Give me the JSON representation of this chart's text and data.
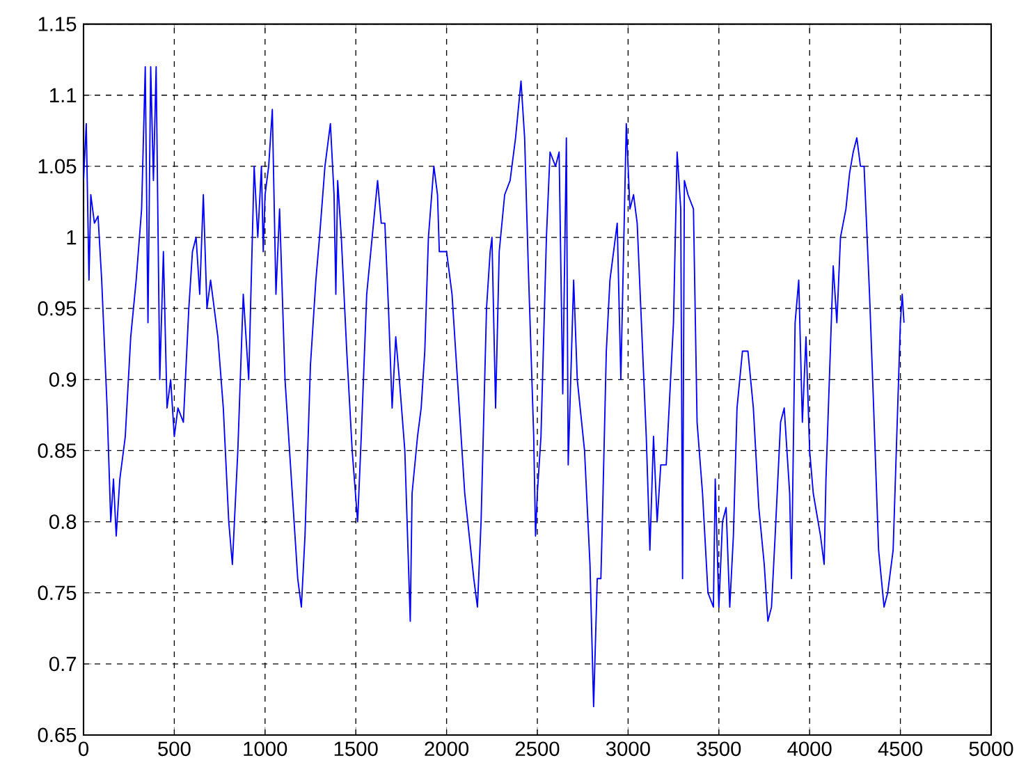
{
  "chart_data": {
    "type": "line",
    "color": "#0000ff",
    "grid": true,
    "line_style": "solid",
    "xlim": [
      0,
      5000
    ],
    "ylim": [
      0.65,
      1.15
    ],
    "xticks": [
      0,
      500,
      1000,
      1500,
      2000,
      2500,
      3000,
      3500,
      4000,
      4500,
      5000
    ],
    "yticks": [
      0.65,
      0.7,
      0.75,
      0.8,
      0.85,
      0.9,
      0.95,
      1,
      1.05,
      1.1,
      1.15
    ],
    "x": [
      0,
      15,
      30,
      40,
      60,
      80,
      100,
      130,
      150,
      165,
      180,
      200,
      230,
      260,
      290,
      320,
      340,
      355,
      370,
      385,
      400,
      420,
      440,
      460,
      480,
      500,
      520,
      550,
      580,
      600,
      620,
      640,
      660,
      680,
      700,
      740,
      770,
      800,
      820,
      850,
      880,
      910,
      940,
      960,
      980,
      990,
      1000,
      1020,
      1040,
      1060,
      1080,
      1110,
      1140,
      1180,
      1200,
      1220,
      1250,
      1280,
      1300,
      1330,
      1350,
      1360,
      1380,
      1390,
      1400,
      1420,
      1450,
      1480,
      1510,
      1530,
      1560,
      1590,
      1620,
      1640,
      1660,
      1680,
      1700,
      1720,
      1740,
      1770,
      1800,
      1810,
      1840,
      1860,
      1880,
      1900,
      1930,
      1950,
      1960,
      2000,
      2030,
      2060,
      2100,
      2150,
      2170,
      2190,
      2220,
      2240,
      2250,
      2270,
      2290,
      2320,
      2350,
      2380,
      2410,
      2430,
      2450,
      2480,
      2490,
      2500,
      2520,
      2550,
      2570,
      2600,
      2620,
      2640,
      2660,
      2670,
      2700,
      2720,
      2760,
      2790,
      2810,
      2830,
      2850,
      2860,
      2880,
      2900,
      2920,
      2940,
      2960,
      2990,
      3010,
      3030,
      3050,
      3070,
      3100,
      3120,
      3140,
      3160,
      3180,
      3210,
      3250,
      3270,
      3290,
      3300,
      3310,
      3330,
      3360,
      3380,
      3410,
      3440,
      3470,
      3480,
      3500,
      3520,
      3540,
      3560,
      3580,
      3600,
      3630,
      3660,
      3690,
      3720,
      3750,
      3770,
      3790,
      3810,
      3840,
      3860,
      3890,
      3900,
      3920,
      3940,
      3960,
      3980,
      4000,
      4020,
      4060,
      4080,
      4090,
      4130,
      4150,
      4170,
      4200,
      4220,
      4240,
      4260,
      4280,
      4300,
      4330,
      4350,
      4380,
      4410,
      4430,
      4460,
      4480,
      4500,
      4510,
      4520
    ],
    "values": [
      1.04,
      1.08,
      0.97,
      1.03,
      1.01,
      1.015,
      0.97,
      0.88,
      0.8,
      0.83,
      0.79,
      0.83,
      0.86,
      0.93,
      0.97,
      1.02,
      1.12,
      0.94,
      1.12,
      1.04,
      1.12,
      0.9,
      0.99,
      0.88,
      0.9,
      0.86,
      0.88,
      0.87,
      0.95,
      0.99,
      1.0,
      0.96,
      1.03,
      0.95,
      0.97,
      0.93,
      0.88,
      0.8,
      0.77,
      0.85,
      0.96,
      0.9,
      1.05,
      1.0,
      1.05,
      0.99,
      1.03,
      1.05,
      1.09,
      0.96,
      1.02,
      0.9,
      0.84,
      0.76,
      0.74,
      0.79,
      0.91,
      0.97,
      1.0,
      1.05,
      1.07,
      1.08,
      1.03,
      0.96,
      1.04,
      1.0,
      0.92,
      0.85,
      0.8,
      0.86,
      0.96,
      1.0,
      1.04,
      1.01,
      1.01,
      0.95,
      0.88,
      0.93,
      0.9,
      0.85,
      0.73,
      0.82,
      0.86,
      0.88,
      0.92,
      1.0,
      1.05,
      1.03,
      0.99,
      0.99,
      0.96,
      0.9,
      0.82,
      0.76,
      0.74,
      0.8,
      0.95,
      0.99,
      1.0,
      0.88,
      0.99,
      1.03,
      1.04,
      1.07,
      1.11,
      1.07,
      0.98,
      0.86,
      0.79,
      0.82,
      0.86,
      1.0,
      1.06,
      1.05,
      1.06,
      0.89,
      1.07,
      0.84,
      0.97,
      0.9,
      0.85,
      0.77,
      0.67,
      0.76,
      0.76,
      0.81,
      0.92,
      0.97,
      0.99,
      1.01,
      0.9,
      1.08,
      1.02,
      1.03,
      1.01,
      0.95,
      0.86,
      0.78,
      0.86,
      0.8,
      0.84,
      0.84,
      0.94,
      1.06,
      1.02,
      0.76,
      1.04,
      1.03,
      1.02,
      0.87,
      0.82,
      0.75,
      0.74,
      0.83,
      0.74,
      0.8,
      0.81,
      0.74,
      0.79,
      0.88,
      0.92,
      0.92,
      0.88,
      0.81,
      0.77,
      0.73,
      0.74,
      0.79,
      0.87,
      0.88,
      0.82,
      0.76,
      0.94,
      0.97,
      0.87,
      0.93,
      0.85,
      0.82,
      0.79,
      0.77,
      0.83,
      0.98,
      0.94,
      1.0,
      1.02,
      1.045,
      1.06,
      1.07,
      1.05,
      1.05,
      0.96,
      0.89,
      0.78,
      0.74,
      0.75,
      0.78,
      0.86,
      0.94,
      0.96,
      0.94
    ]
  }
}
